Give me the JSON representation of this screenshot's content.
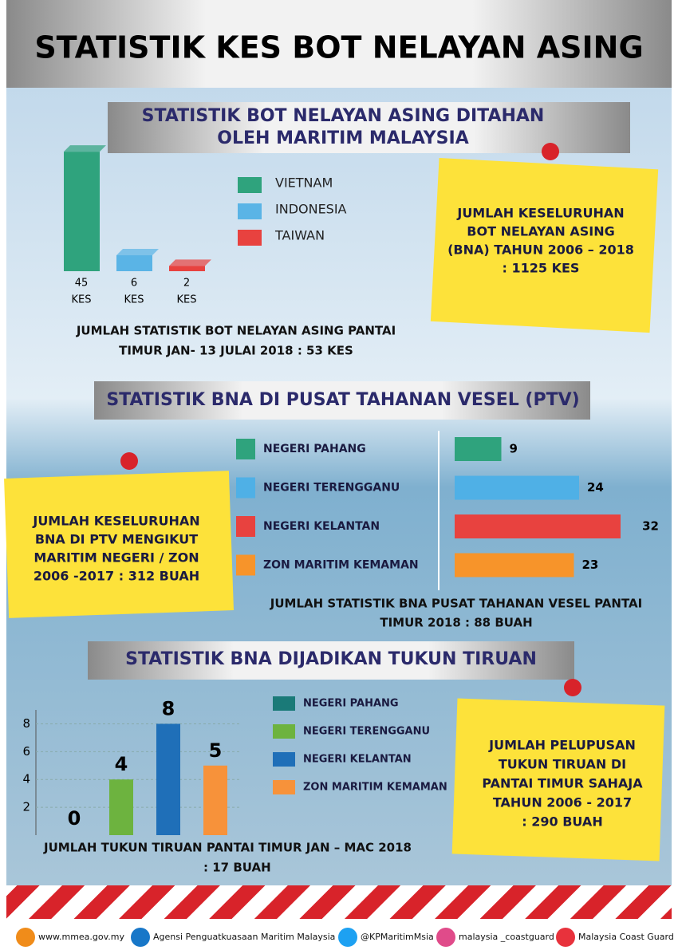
{
  "title": "STATISTIK KES BOT NELAYAN ASING",
  "section1": {
    "type": "bar",
    "title_lines": [
      "STATISTIK BOT NELAYAN ASING DITAHAN",
      "OLEH MARITIM MALAYSIA"
    ],
    "categories": [
      "VIETNAM",
      "INDONESIA",
      "TAIWAN"
    ],
    "colors": [
      "#2fa37d",
      "#5ab4e6",
      "#e8423f"
    ],
    "values": [
      45,
      6,
      2
    ],
    "value_units": [
      "KES",
      "KES",
      "KES"
    ],
    "note_lines": [
      "JUMLAH KESELURUHAN",
      "BOT NELAYAN ASING",
      "(BNA) TAHUN 2006 – 2018",
      ": 1125 KES"
    ],
    "total_lines": [
      "JUMLAH STATISTIK BOT NELAYAN ASING PANTAI",
      "TIMUR JAN- 13 JULAI 2018 : 53 KES"
    ]
  },
  "section2": {
    "type": "hbar",
    "title": "STATISTIK BNA DI PUSAT TAHANAN  VESEL (PTV)",
    "categories": [
      "NEGERI PAHANG",
      "NEGERI TERENGGANU",
      "NEGERI KELANTAN",
      "ZON MARITIM KEMAMAN"
    ],
    "colors": [
      "#2fa37d",
      "#4fb0e6",
      "#e8423f",
      "#f7942a"
    ],
    "values": [
      9,
      24,
      32,
      23
    ],
    "note_lines": [
      "JUMLAH KESELURUHAN",
      "BNA DI PTV MENGIKUT",
      "MARITIM NEGERI / ZON",
      "2006 -2017   : 312 BUAH"
    ],
    "total_lines": [
      "JUMLAH STATISTIK BNA PUSAT TAHANAN VESEL PANTAI",
      "TIMUR 2018 : 88 BUAH"
    ]
  },
  "section3": {
    "type": "bar",
    "title": "STATISTIK BNA DIJADIKAN TUKUN TIRUAN",
    "categories": [
      "NEGERI PAHANG",
      "NEGERI TERENGGANU",
      "NEGERI KELANTAN",
      "ZON MARITIM KEMAMAN"
    ],
    "colors": [
      "#1a7a78",
      "#6db33f",
      "#1f6fb8",
      "#f7923a"
    ],
    "values": [
      0,
      4,
      8,
      5
    ],
    "ylim": [
      0,
      9
    ],
    "yticks": [
      2,
      4,
      6,
      8
    ],
    "note_lines": [
      "JUMLAH PELUPUSAN",
      "TUKUN TIRUAN DI",
      "PANTAI TIMUR SAHAJA",
      "TAHUN 2006 - 2017",
      ": 290 BUAH"
    ],
    "total_lines": [
      "JUMLAH TUKUN TIRUAN  PANTAI TIMUR JAN – MAC  2018",
      ": 17 BUAH"
    ]
  },
  "footer": {
    "links": [
      "www.mmea.gov.my",
      "Agensi Penguatkuasaan Maritim Malaysia",
      "@KPMaritimMsia",
      "malaysia _coastguard",
      "Malaysia Coast Guard"
    ]
  }
}
